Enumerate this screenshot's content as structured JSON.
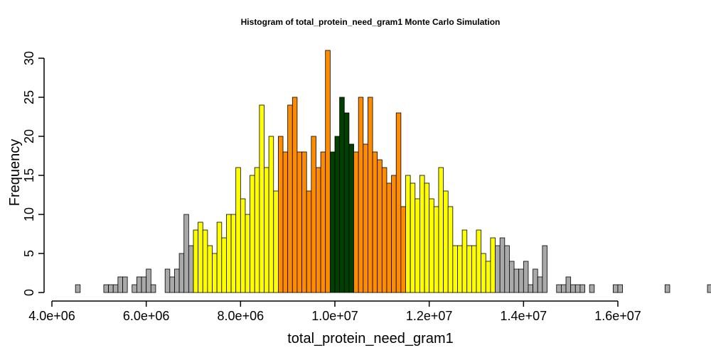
{
  "chart_data": {
    "type": "bar",
    "title": "Histogram of  total_protein_need_gram1  Monte Carlo Simulation",
    "xlabel": "total_protein_need_gram1",
    "ylabel": "Frequency",
    "xlim": [
      4000000,
      17000000
    ],
    "ylim": [
      0,
      31
    ],
    "x_ticks": [
      {
        "value": 4000000,
        "label": "4.0e+06"
      },
      {
        "value": 6000000,
        "label": "6.0e+06"
      },
      {
        "value": 8000000,
        "label": "8.0e+06"
      },
      {
        "value": 10000000,
        "label": "1.0e+07"
      },
      {
        "value": 12000000,
        "label": "1.2e+07"
      },
      {
        "value": 14000000,
        "label": "1.4e+07"
      },
      {
        "value": 16000000,
        "label": "1.6e+07"
      }
    ],
    "y_ticks": [
      {
        "value": 0,
        "label": "0"
      },
      {
        "value": 5,
        "label": "5"
      },
      {
        "value": 10,
        "label": "10"
      },
      {
        "value": 15,
        "label": "15"
      },
      {
        "value": 20,
        "label": "20"
      },
      {
        "value": 25,
        "label": "25"
      },
      {
        "value": 30,
        "label": "30"
      }
    ],
    "bin_start": 4500000,
    "bin_width": 100000,
    "colors": {
      "grey": "#a9a9a9",
      "yellow": "#ffff00",
      "orange": "#ff8c00",
      "green": "#004000"
    },
    "bins": [
      [
        1,
        "grey"
      ],
      [
        0,
        "grey"
      ],
      [
        0,
        "grey"
      ],
      [
        0,
        "grey"
      ],
      [
        0,
        "grey"
      ],
      [
        0,
        "grey"
      ],
      [
        1,
        "grey"
      ],
      [
        1,
        "grey"
      ],
      [
        1,
        "grey"
      ],
      [
        2,
        "grey"
      ],
      [
        2,
        "grey"
      ],
      [
        0,
        "grey"
      ],
      [
        1,
        "grey"
      ],
      [
        2,
        "grey"
      ],
      [
        2,
        "grey"
      ],
      [
        3,
        "grey"
      ],
      [
        1,
        "grey"
      ],
      [
        0,
        "grey"
      ],
      [
        0,
        "grey"
      ],
      [
        3,
        "grey"
      ],
      [
        2,
        "grey"
      ],
      [
        3,
        "grey"
      ],
      [
        5,
        "grey"
      ],
      [
        10,
        "grey"
      ],
      [
        6,
        "grey"
      ],
      [
        8,
        "yellow"
      ],
      [
        9,
        "yellow"
      ],
      [
        8,
        "yellow"
      ],
      [
        6,
        "yellow"
      ],
      [
        5,
        "yellow"
      ],
      [
        9,
        "yellow"
      ],
      [
        7,
        "yellow"
      ],
      [
        10,
        "yellow"
      ],
      [
        10,
        "yellow"
      ],
      [
        16,
        "yellow"
      ],
      [
        12,
        "yellow"
      ],
      [
        10,
        "yellow"
      ],
      [
        15,
        "yellow"
      ],
      [
        16,
        "yellow"
      ],
      [
        24,
        "yellow"
      ],
      [
        16,
        "yellow"
      ],
      [
        20,
        "yellow"
      ],
      [
        13,
        "yellow"
      ],
      [
        20,
        "orange"
      ],
      [
        18,
        "orange"
      ],
      [
        24,
        "orange"
      ],
      [
        25,
        "orange"
      ],
      [
        18,
        "orange"
      ],
      [
        18,
        "orange"
      ],
      [
        13,
        "orange"
      ],
      [
        20,
        "orange"
      ],
      [
        16,
        "orange"
      ],
      [
        18,
        "orange"
      ],
      [
        31,
        "orange"
      ],
      [
        18,
        "green"
      ],
      [
        20,
        "green"
      ],
      [
        25,
        "green"
      ],
      [
        23,
        "green"
      ],
      [
        19,
        "green"
      ],
      [
        18,
        "orange"
      ],
      [
        25,
        "orange"
      ],
      [
        19,
        "orange"
      ],
      [
        25,
        "orange"
      ],
      [
        18,
        "orange"
      ],
      [
        17,
        "orange"
      ],
      [
        16,
        "orange"
      ],
      [
        14,
        "orange"
      ],
      [
        15,
        "orange"
      ],
      [
        23,
        "orange"
      ],
      [
        11,
        "orange"
      ],
      [
        15,
        "yellow"
      ],
      [
        14,
        "yellow"
      ],
      [
        12,
        "yellow"
      ],
      [
        15,
        "yellow"
      ],
      [
        14,
        "yellow"
      ],
      [
        12,
        "yellow"
      ],
      [
        11,
        "yellow"
      ],
      [
        16,
        "yellow"
      ],
      [
        13,
        "yellow"
      ],
      [
        11,
        "yellow"
      ],
      [
        6,
        "yellow"
      ],
      [
        6,
        "yellow"
      ],
      [
        8,
        "yellow"
      ],
      [
        6,
        "yellow"
      ],
      [
        6,
        "yellow"
      ],
      [
        8,
        "yellow"
      ],
      [
        5,
        "yellow"
      ],
      [
        4,
        "yellow"
      ],
      [
        7,
        "yellow"
      ],
      [
        6,
        "grey"
      ],
      [
        7,
        "grey"
      ],
      [
        6,
        "grey"
      ],
      [
        4,
        "grey"
      ],
      [
        3,
        "grey"
      ],
      [
        3,
        "grey"
      ],
      [
        4,
        "grey"
      ],
      [
        1,
        "grey"
      ],
      [
        3,
        "grey"
      ],
      [
        2,
        "grey"
      ],
      [
        6,
        "grey"
      ],
      [
        0,
        "grey"
      ],
      [
        0,
        "grey"
      ],
      [
        1,
        "grey"
      ],
      [
        1,
        "grey"
      ],
      [
        2,
        "grey"
      ],
      [
        1,
        "grey"
      ],
      [
        1,
        "grey"
      ],
      [
        1,
        "grey"
      ],
      [
        0,
        "grey"
      ],
      [
        1,
        "grey"
      ],
      [
        0,
        "grey"
      ],
      [
        0,
        "grey"
      ],
      [
        0,
        "grey"
      ],
      [
        0,
        "grey"
      ],
      [
        1,
        "grey"
      ],
      [
        1,
        "grey"
      ],
      [
        0,
        "grey"
      ],
      [
        0,
        "grey"
      ],
      [
        0,
        "grey"
      ],
      [
        0,
        "grey"
      ],
      [
        0,
        "grey"
      ],
      [
        0,
        "grey"
      ],
      [
        0,
        "grey"
      ],
      [
        0,
        "grey"
      ],
      [
        0,
        "grey"
      ],
      [
        1,
        "grey"
      ],
      [
        0,
        "grey"
      ],
      [
        0,
        "grey"
      ],
      [
        0,
        "grey"
      ],
      [
        0,
        "grey"
      ],
      [
        0,
        "grey"
      ],
      [
        0,
        "grey"
      ],
      [
        0,
        "grey"
      ],
      [
        0,
        "grey"
      ],
      [
        1,
        "grey"
      ]
    ]
  }
}
